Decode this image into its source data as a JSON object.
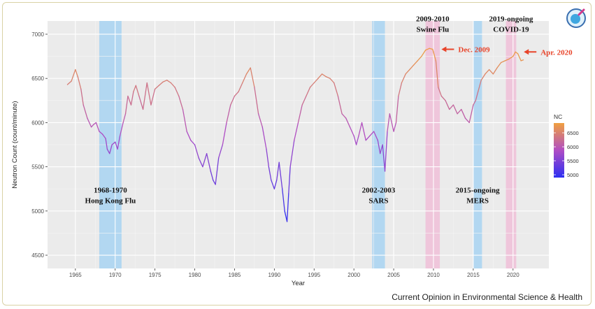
{
  "caption": "Current Opinion in Environmental Science & Health",
  "logo_icon": "journal-logo-icon",
  "chart_data": {
    "type": "line",
    "title": "",
    "xlabel": "Year",
    "ylabel": "Neutron Count (count/minute)",
    "xlim": [
      1961.5,
      2024.5
    ],
    "ylim": [
      4350,
      7150
    ],
    "xticks": [
      1965,
      1970,
      1975,
      1980,
      1985,
      1990,
      1995,
      2000,
      2005,
      2010,
      2015,
      2020
    ],
    "yticks": [
      4500,
      5000,
      5500,
      6000,
      6500,
      7000
    ],
    "grid": true,
    "legend": {
      "title": "NC",
      "position": "right",
      "ticks": [
        6500,
        6000,
        5500,
        5000
      ],
      "range": [
        4900,
        6850
      ]
    },
    "color_scale": {
      "low": "#2c2ff2",
      "mid": "#b04dc4",
      "high": "#f0a040"
    },
    "series": [
      {
        "x": [
          1964.0,
          1964.5,
          1965.0,
          1965.3,
          1965.7,
          1966.0,
          1966.5,
          1967.0,
          1967.3,
          1967.6,
          1968.0,
          1968.4,
          1968.8,
          1969.0,
          1969.3,
          1969.6,
          1970.0,
          1970.3,
          1970.6,
          1971.0,
          1971.3,
          1971.6,
          1972.0,
          1972.3,
          1972.6,
          1973.0,
          1973.5,
          1974.0,
          1974.5,
          1975.0,
          1975.5,
          1976.0,
          1976.5,
          1977.0,
          1977.5,
          1978.0,
          1978.5,
          1979.0,
          1979.5,
          1980.0,
          1980.5,
          1981.0,
          1981.5,
          1982.0,
          1982.3,
          1982.6,
          1983.0,
          1983.5,
          1984.0,
          1984.5,
          1985.0,
          1985.5,
          1986.0,
          1986.5,
          1987.0,
          1987.5,
          1988.0,
          1988.5,
          1989.0,
          1989.3,
          1989.6,
          1990.0,
          1990.3,
          1990.6,
          1991.0,
          1991.3,
          1991.6,
          1991.8,
          1992.0,
          1992.5,
          1993.0,
          1993.5,
          1994.0,
          1994.5,
          1995.0,
          1995.5,
          1996.0,
          1996.5,
          1997.0,
          1997.5,
          1998.0,
          1998.5,
          1999.0,
          1999.5,
          2000.0,
          2000.3,
          2000.6,
          2001.0,
          2001.5,
          2002.0,
          2002.5,
          2003.0,
          2003.3,
          2003.6,
          2003.9,
          2004.2,
          2004.5,
          2005.0,
          2005.3,
          2005.6,
          2006.0,
          2006.5,
          2007.0,
          2007.5,
          2008.0,
          2008.5,
          2009.0,
          2009.5,
          2009.9,
          2010.3,
          2010.6,
          2011.0,
          2011.5,
          2012.0,
          2012.5,
          2013.0,
          2013.5,
          2014.0,
          2014.5,
          2015.0,
          2015.3,
          2015.6,
          2016.0,
          2016.5,
          2017.0,
          2017.5,
          2018.0,
          2018.5,
          2019.0,
          2019.5,
          2020.0,
          2020.3,
          2020.6,
          2021.0,
          2021.3
        ],
        "y": [
          6430,
          6470,
          6600,
          6520,
          6380,
          6200,
          6050,
          5950,
          5980,
          6000,
          5900,
          5870,
          5820,
          5700,
          5650,
          5750,
          5780,
          5700,
          5850,
          6000,
          6100,
          6300,
          6200,
          6350,
          6420,
          6300,
          6150,
          6450,
          6200,
          6380,
          6420,
          6460,
          6480,
          6450,
          6400,
          6300,
          6150,
          5900,
          5800,
          5750,
          5600,
          5500,
          5650,
          5450,
          5350,
          5300,
          5600,
          5750,
          6000,
          6200,
          6300,
          6350,
          6450,
          6550,
          6620,
          6400,
          6100,
          5950,
          5700,
          5500,
          5350,
          5250,
          5350,
          5550,
          5250,
          5000,
          4880,
          5200,
          5500,
          5800,
          6000,
          6200,
          6300,
          6400,
          6450,
          6500,
          6550,
          6520,
          6500,
          6450,
          6300,
          6100,
          6050,
          5950,
          5850,
          5750,
          5850,
          6000,
          5800,
          5850,
          5900,
          5800,
          5650,
          5750,
          5450,
          5900,
          6100,
          5900,
          6000,
          6300,
          6450,
          6550,
          6600,
          6650,
          6700,
          6750,
          6820,
          6840,
          6830,
          6700,
          6400,
          6300,
          6250,
          6150,
          6200,
          6100,
          6150,
          6050,
          6000,
          6200,
          6250,
          6350,
          6480,
          6550,
          6600,
          6550,
          6620,
          6680,
          6700,
          6720,
          6750,
          6800,
          6780,
          6700,
          6710
        ]
      }
    ],
    "bands": [
      {
        "label": "1968-1970\nHong Kong Flu",
        "x0": 1968.0,
        "x1": 1970.8,
        "color": "#a8d4f2"
      },
      {
        "label": "2002-2003\nSARS",
        "x0": 2002.3,
        "x1": 2003.9,
        "color": "#a8d4f2"
      },
      {
        "label": "2009-2010\nSwine Flu",
        "x0": 2009.0,
        "x1": 2010.8,
        "color": "#f0c0d8"
      },
      {
        "label": "2015-ongoing\nMERS",
        "x0": 2015.0,
        "x1": 2016.1,
        "color": "#a8d4f2"
      },
      {
        "label": "2019-ongoing\nCOVID-19",
        "x0": 2019.1,
        "x1": 2020.4,
        "color": "#f0c0d8"
      }
    ],
    "annotations": [
      {
        "text": "Dec. 2009",
        "x": 2009.95,
        "y": 6830,
        "color": "#e8442a"
      },
      {
        "text": "Apr. 2020",
        "x": 2020.3,
        "y": 6800,
        "color": "#e8442a"
      }
    ]
  }
}
